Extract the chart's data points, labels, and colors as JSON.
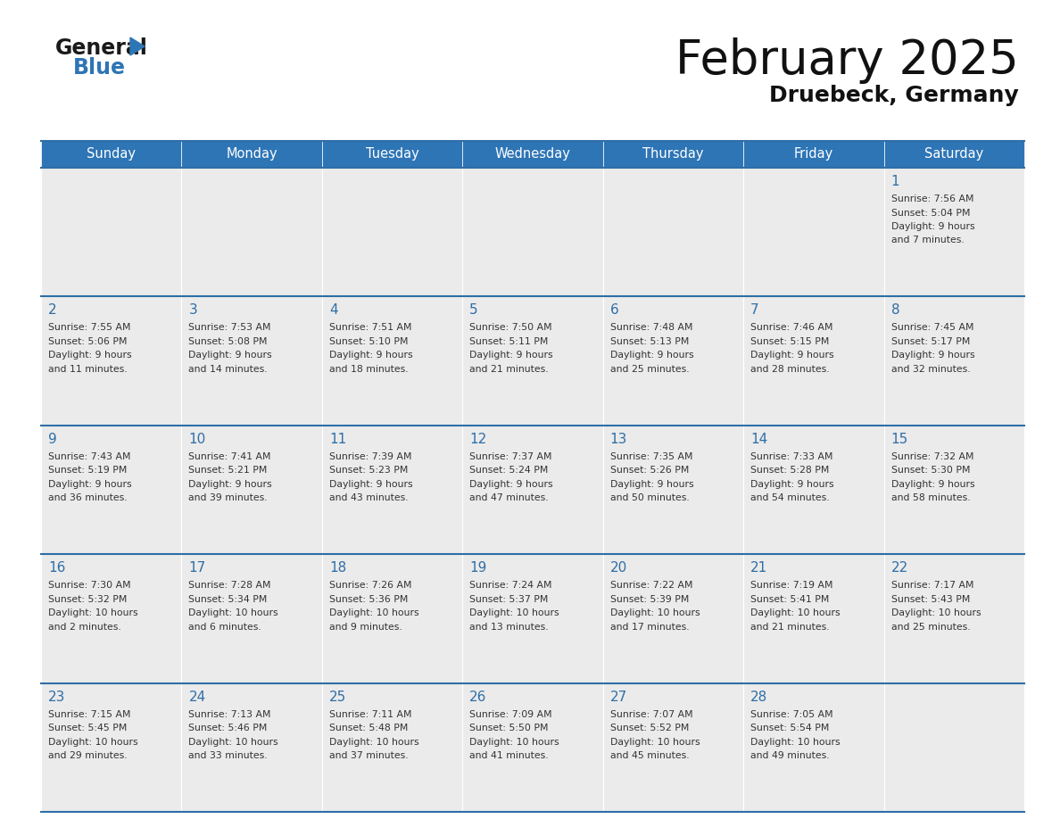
{
  "title": "February 2025",
  "subtitle": "Druebeck, Germany",
  "header_bg": "#2E75B6",
  "header_text_color": "#FFFFFF",
  "cell_bg": "#EBEBEB",
  "line_color": "#2E6EA6",
  "day_number_color": "#2E6EA6",
  "text_color": "#333333",
  "title_color": "#111111",
  "subtitle_color": "#111111",
  "days_of_week": [
    "Sunday",
    "Monday",
    "Tuesday",
    "Wednesday",
    "Thursday",
    "Friday",
    "Saturday"
  ],
  "weeks": [
    [
      {
        "day": null,
        "info": null
      },
      {
        "day": null,
        "info": null
      },
      {
        "day": null,
        "info": null
      },
      {
        "day": null,
        "info": null
      },
      {
        "day": null,
        "info": null
      },
      {
        "day": null,
        "info": null
      },
      {
        "day": 1,
        "info": "Sunrise: 7:56 AM\nSunset: 5:04 PM\nDaylight: 9 hours\nand 7 minutes."
      }
    ],
    [
      {
        "day": 2,
        "info": "Sunrise: 7:55 AM\nSunset: 5:06 PM\nDaylight: 9 hours\nand 11 minutes."
      },
      {
        "day": 3,
        "info": "Sunrise: 7:53 AM\nSunset: 5:08 PM\nDaylight: 9 hours\nand 14 minutes."
      },
      {
        "day": 4,
        "info": "Sunrise: 7:51 AM\nSunset: 5:10 PM\nDaylight: 9 hours\nand 18 minutes."
      },
      {
        "day": 5,
        "info": "Sunrise: 7:50 AM\nSunset: 5:11 PM\nDaylight: 9 hours\nand 21 minutes."
      },
      {
        "day": 6,
        "info": "Sunrise: 7:48 AM\nSunset: 5:13 PM\nDaylight: 9 hours\nand 25 minutes."
      },
      {
        "day": 7,
        "info": "Sunrise: 7:46 AM\nSunset: 5:15 PM\nDaylight: 9 hours\nand 28 minutes."
      },
      {
        "day": 8,
        "info": "Sunrise: 7:45 AM\nSunset: 5:17 PM\nDaylight: 9 hours\nand 32 minutes."
      }
    ],
    [
      {
        "day": 9,
        "info": "Sunrise: 7:43 AM\nSunset: 5:19 PM\nDaylight: 9 hours\nand 36 minutes."
      },
      {
        "day": 10,
        "info": "Sunrise: 7:41 AM\nSunset: 5:21 PM\nDaylight: 9 hours\nand 39 minutes."
      },
      {
        "day": 11,
        "info": "Sunrise: 7:39 AM\nSunset: 5:23 PM\nDaylight: 9 hours\nand 43 minutes."
      },
      {
        "day": 12,
        "info": "Sunrise: 7:37 AM\nSunset: 5:24 PM\nDaylight: 9 hours\nand 47 minutes."
      },
      {
        "day": 13,
        "info": "Sunrise: 7:35 AM\nSunset: 5:26 PM\nDaylight: 9 hours\nand 50 minutes."
      },
      {
        "day": 14,
        "info": "Sunrise: 7:33 AM\nSunset: 5:28 PM\nDaylight: 9 hours\nand 54 minutes."
      },
      {
        "day": 15,
        "info": "Sunrise: 7:32 AM\nSunset: 5:30 PM\nDaylight: 9 hours\nand 58 minutes."
      }
    ],
    [
      {
        "day": 16,
        "info": "Sunrise: 7:30 AM\nSunset: 5:32 PM\nDaylight: 10 hours\nand 2 minutes."
      },
      {
        "day": 17,
        "info": "Sunrise: 7:28 AM\nSunset: 5:34 PM\nDaylight: 10 hours\nand 6 minutes."
      },
      {
        "day": 18,
        "info": "Sunrise: 7:26 AM\nSunset: 5:36 PM\nDaylight: 10 hours\nand 9 minutes."
      },
      {
        "day": 19,
        "info": "Sunrise: 7:24 AM\nSunset: 5:37 PM\nDaylight: 10 hours\nand 13 minutes."
      },
      {
        "day": 20,
        "info": "Sunrise: 7:22 AM\nSunset: 5:39 PM\nDaylight: 10 hours\nand 17 minutes."
      },
      {
        "day": 21,
        "info": "Sunrise: 7:19 AM\nSunset: 5:41 PM\nDaylight: 10 hours\nand 21 minutes."
      },
      {
        "day": 22,
        "info": "Sunrise: 7:17 AM\nSunset: 5:43 PM\nDaylight: 10 hours\nand 25 minutes."
      }
    ],
    [
      {
        "day": 23,
        "info": "Sunrise: 7:15 AM\nSunset: 5:45 PM\nDaylight: 10 hours\nand 29 minutes."
      },
      {
        "day": 24,
        "info": "Sunrise: 7:13 AM\nSunset: 5:46 PM\nDaylight: 10 hours\nand 33 minutes."
      },
      {
        "day": 25,
        "info": "Sunrise: 7:11 AM\nSunset: 5:48 PM\nDaylight: 10 hours\nand 37 minutes."
      },
      {
        "day": 26,
        "info": "Sunrise: 7:09 AM\nSunset: 5:50 PM\nDaylight: 10 hours\nand 41 minutes."
      },
      {
        "day": 27,
        "info": "Sunrise: 7:07 AM\nSunset: 5:52 PM\nDaylight: 10 hours\nand 45 minutes."
      },
      {
        "day": 28,
        "info": "Sunrise: 7:05 AM\nSunset: 5:54 PM\nDaylight: 10 hours\nand 49 minutes."
      },
      {
        "day": null,
        "info": null
      }
    ]
  ]
}
